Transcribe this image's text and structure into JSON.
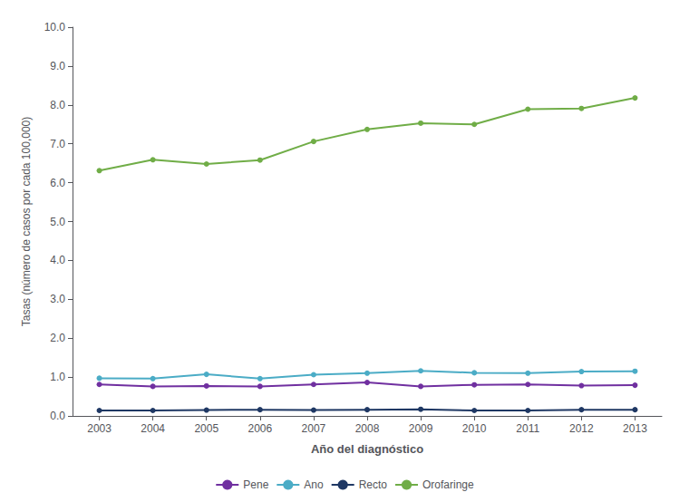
{
  "chart_data": {
    "type": "line",
    "xlabel": "Año del diagnóstico",
    "ylabel": "Tasas (número de casos por cada 100,000)",
    "x": [
      2003,
      2004,
      2005,
      2006,
      2007,
      2008,
      2009,
      2010,
      2011,
      2012,
      2013
    ],
    "series": [
      {
        "name": "Pene",
        "color": "#7030a0",
        "marker": "circle",
        "values": [
          0.81,
          0.76,
          0.77,
          0.76,
          0.81,
          0.86,
          0.76,
          0.8,
          0.81,
          0.78,
          0.79
        ]
      },
      {
        "name": "Ano",
        "color": "#4bacc6",
        "marker": "circle",
        "values": [
          0.97,
          0.96,
          1.07,
          0.96,
          1.06,
          1.1,
          1.16,
          1.11,
          1.1,
          1.14,
          1.15
        ]
      },
      {
        "name": "Recto",
        "color": "#1f3864",
        "marker": "circle",
        "values": [
          0.14,
          0.14,
          0.15,
          0.16,
          0.15,
          0.16,
          0.17,
          0.14,
          0.14,
          0.16,
          0.16
        ]
      },
      {
        "name": "Orofaringe",
        "color": "#70ad47",
        "marker": "circle",
        "values": [
          6.31,
          6.59,
          6.48,
          6.58,
          7.06,
          7.37,
          7.53,
          7.5,
          7.89,
          7.91,
          8.18
        ]
      }
    ],
    "xlim": [
      2002.5,
      2013.5
    ],
    "xticks": [
      2003,
      2004,
      2005,
      2006,
      2007,
      2008,
      2009,
      2010,
      2011,
      2012,
      2013
    ],
    "ylim": [
      0,
      10.0
    ],
    "yticks": [
      {
        "value": 0.0,
        "label": "0.0"
      },
      {
        "value": 1.0,
        "label": "1.0"
      },
      {
        "value": 2.0,
        "label": "2.0"
      },
      {
        "value": 3.0,
        "label": "3.0"
      },
      {
        "value": 4.0,
        "label": "4.0"
      },
      {
        "value": 5.0,
        "label": "5.0"
      },
      {
        "value": 6.0,
        "label": "6.0"
      },
      {
        "value": 7.0,
        "label": "7.0"
      },
      {
        "value": 8.0,
        "label": "8.0"
      },
      {
        "value": 9.0,
        "label": "9.0"
      },
      {
        "value": 10.0,
        "label": "10.0"
      }
    ],
    "grid": false,
    "legend": "bottom"
  }
}
